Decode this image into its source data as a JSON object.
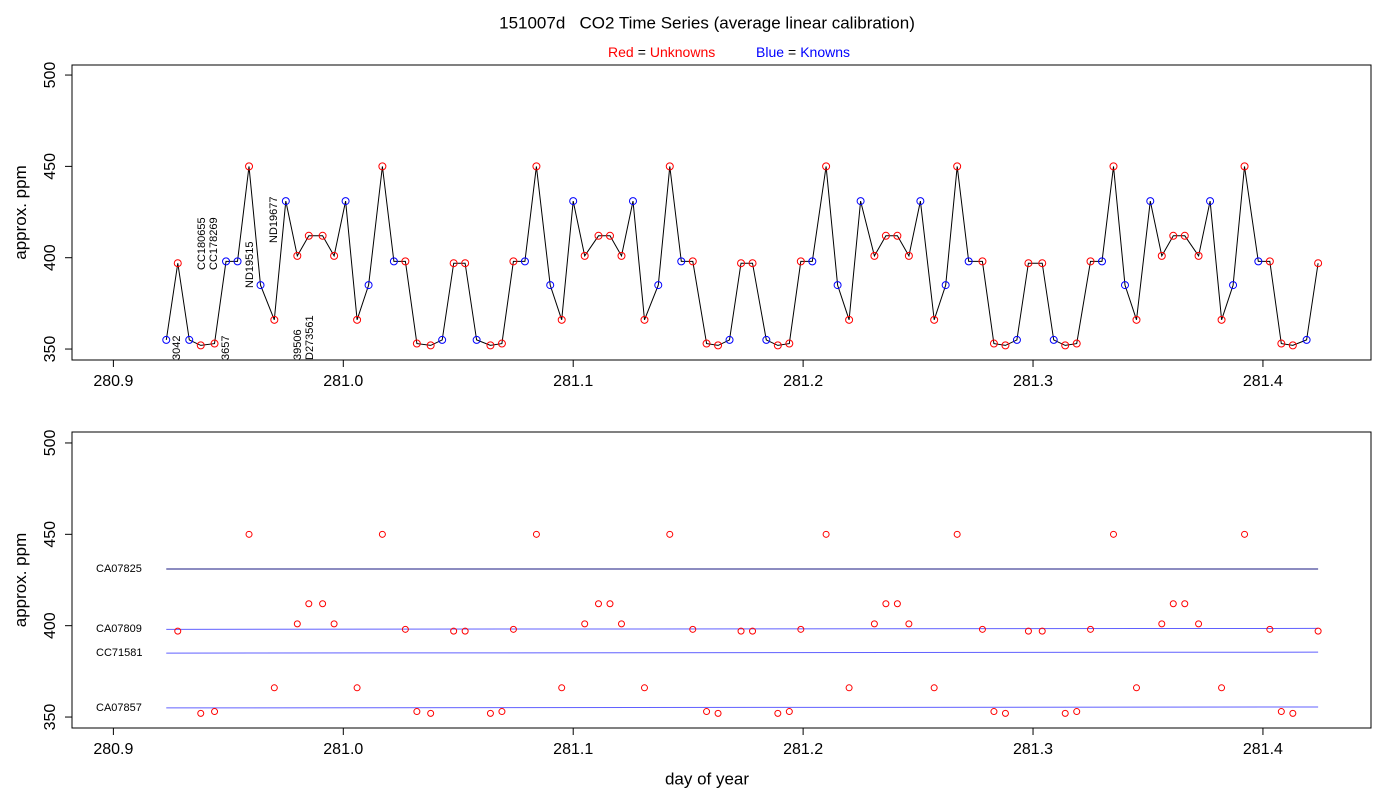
{
  "chart_data": [
    {
      "type": "line",
      "title": "151007d   CO2 Time Series (average linear calibration)",
      "ylabel": "approx. ppm",
      "legend_separator": "=",
      "legend": [
        {
          "color_word": "Red",
          "name": "Unknowns",
          "color": "red"
        },
        {
          "color_word": "Blue",
          "name": "Knowns",
          "color": "blue"
        }
      ],
      "line_color": "#000000",
      "xlim": [
        280.882,
        281.447
      ],
      "ylim": [
        344,
        505.5
      ],
      "xticks": [
        280.9,
        {
          "value": 281,
          "label": "281.0"
        },
        281.1,
        281.2,
        281.3,
        281.4
      ],
      "yticks": [
        350,
        400,
        450,
        500
      ],
      "series": [
        {
          "x": [
            280.923,
            280.928,
            280.933,
            280.938,
            280.944,
            280.949,
            280.954,
            280.959,
            280.964,
            280.97,
            280.975,
            280.98,
            280.985,
            280.991,
            280.996,
            281.001,
            281.006,
            281.011,
            281.017,
            281.022,
            281.027,
            281.032,
            281.038,
            281.043,
            281.048,
            281.053,
            281.058,
            281.064,
            281.069,
            281.074,
            281.079,
            281.084,
            281.09,
            281.095,
            281.1,
            281.105,
            281.111,
            281.116,
            281.121,
            281.126,
            281.131,
            281.137,
            281.142,
            281.147,
            281.152,
            281.158,
            281.163,
            281.168,
            281.173,
            281.178,
            281.184,
            281.189,
            281.194,
            281.199,
            281.204,
            281.21,
            281.215,
            281.22,
            281.225,
            281.231,
            281.236,
            281.241,
            281.246,
            281.251,
            281.257,
            281.262,
            281.267,
            281.272,
            281.278,
            281.283,
            281.288,
            281.293,
            281.298,
            281.304,
            281.309,
            281.314,
            281.319,
            281.325,
            281.33,
            281.335,
            281.34,
            281.345,
            281.351,
            281.356,
            281.361,
            281.366,
            281.372,
            281.377,
            281.382,
            281.387,
            281.392,
            281.398,
            281.403,
            281.408,
            281.413,
            281.419,
            281.424
          ],
          "values": [
            355,
            397,
            355,
            352,
            353,
            398,
            398,
            450,
            385,
            366,
            431,
            401,
            412,
            412,
            401,
            431,
            366,
            385,
            450,
            398,
            398,
            353,
            352,
            355,
            397,
            397,
            355,
            352,
            353,
            398,
            398,
            450,
            385,
            366,
            431,
            401,
            412,
            412,
            401,
            431,
            366,
            385,
            450,
            398,
            398,
            353,
            352,
            355,
            397,
            397,
            355,
            352,
            353,
            398,
            398,
            450,
            385,
            366,
            431,
            401,
            412,
            412,
            401,
            431,
            366,
            385,
            450,
            398,
            398,
            353,
            352,
            355,
            397,
            397,
            355,
            352,
            353,
            398,
            398,
            450,
            385,
            366,
            431,
            401,
            412,
            412,
            401,
            431,
            366,
            385,
            450,
            398,
            398,
            353,
            352,
            355,
            397
          ],
          "colors": [
            "blue",
            "red",
            "blue",
            "red",
            "red",
            "blue",
            "blue",
            "red",
            "blue",
            "red",
            "blue",
            "red",
            "red",
            "red",
            "red",
            "blue",
            "red",
            "blue",
            "red",
            "blue",
            "red",
            "red",
            "red",
            "blue",
            "red",
            "red",
            "blue",
            "red",
            "red",
            "red",
            "blue",
            "red",
            "blue",
            "red",
            "blue",
            "red",
            "red",
            "red",
            "red",
            "blue",
            "red",
            "blue",
            "red",
            "blue",
            "red",
            "red",
            "red",
            "blue",
            "red",
            "red",
            "blue",
            "red",
            "red",
            "red",
            "blue",
            "red",
            "blue",
            "red",
            "blue",
            "red",
            "red",
            "red",
            "red",
            "blue",
            "red",
            "blue",
            "red",
            "blue",
            "red",
            "red",
            "red",
            "blue",
            "red",
            "red",
            "blue",
            "red",
            "red",
            "red",
            "blue",
            "red",
            "blue",
            "red",
            "blue",
            "red",
            "red",
            "red",
            "red",
            "blue",
            "red",
            "blue",
            "red",
            "blue",
            "red",
            "red",
            "red",
            "blue",
            "red"
          ]
        }
      ],
      "annotations": [
        "3042",
        "CC180655",
        "CC178269",
        "3657",
        "ND19515",
        "ND19677",
        "39506",
        "D273561"
      ],
      "annotation_color": "red"
    },
    {
      "type": "scatter",
      "ylabel": "approx. ppm",
      "xlabel": "day of year",
      "point_color": "red",
      "xlim": [
        280.882,
        281.447
      ],
      "ylim": [
        344,
        506
      ],
      "xticks": [
        280.9,
        {
          "value": 281,
          "label": "281.0"
        },
        281.1,
        281.2,
        281.3,
        281.4
      ],
      "yticks": [
        350,
        400,
        450,
        500
      ],
      "label_color": "blue",
      "reference_lines": [
        {
          "name": "CA07825",
          "x": [
            280.923,
            281.424
          ],
          "values": [
            431,
            431
          ],
          "color": "#1a1a80"
        },
        {
          "name": "CA07809",
          "x": [
            280.923,
            281.424
          ],
          "values": [
            398,
            398.5
          ],
          "color": "#6060ff"
        },
        {
          "name": "CC71581",
          "x": [
            280.923,
            281.424
          ],
          "values": [
            385,
            385.5
          ],
          "color": "#6060ff"
        },
        {
          "name": "CA07857",
          "x": [
            280.923,
            281.424
          ],
          "values": [
            355,
            355.5
          ],
          "color": "#6060ff"
        }
      ]
    }
  ]
}
